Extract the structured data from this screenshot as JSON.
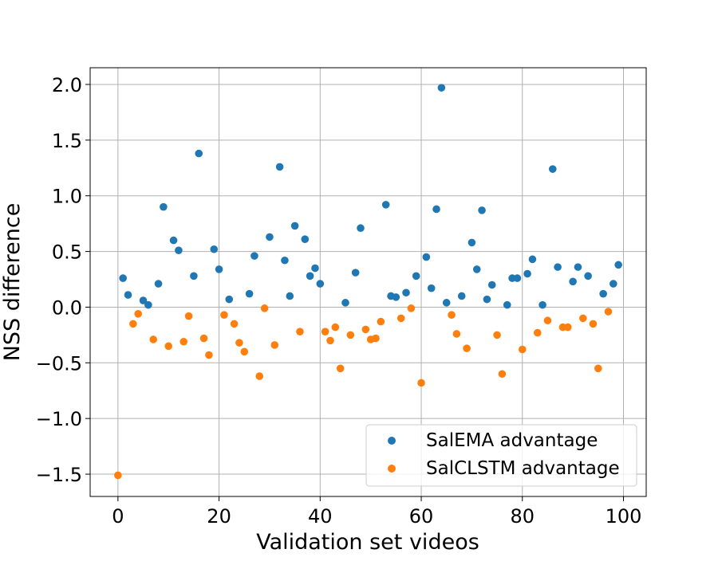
{
  "chart_data": {
    "type": "scatter",
    "title": "",
    "xlabel": "Validation set videos",
    "ylabel": "NSS difference",
    "xlim": [
      -5.5,
      104.5
    ],
    "ylim": [
      -1.7,
      2.15
    ],
    "xticks": [
      0,
      20,
      40,
      60,
      80,
      100
    ],
    "yticks": [
      -1.5,
      -1.0,
      -0.5,
      0.0,
      0.5,
      1.0,
      1.5,
      2.0
    ],
    "xtick_labels": [
      "0",
      "20",
      "40",
      "60",
      "80",
      "100"
    ],
    "ytick_labels": [
      "−1.5",
      "−1.0",
      "−0.5",
      "0.0",
      "0.5",
      "1.0",
      "1.5",
      "2.0"
    ],
    "grid": true,
    "legend_position": "lower-right",
    "series": [
      {
        "name": "SalEMA advantage",
        "color": "#1f77b4",
        "points": [
          [
            1,
            0.26
          ],
          [
            2,
            0.11
          ],
          [
            5,
            0.06
          ],
          [
            6,
            0.02
          ],
          [
            8,
            0.21
          ],
          [
            9,
            0.9
          ],
          [
            11,
            0.6
          ],
          [
            12,
            0.51
          ],
          [
            15,
            0.28
          ],
          [
            16,
            1.38
          ],
          [
            19,
            0.52
          ],
          [
            20,
            0.34
          ],
          [
            22,
            0.07
          ],
          [
            26,
            0.12
          ],
          [
            27,
            0.46
          ],
          [
            30,
            0.63
          ],
          [
            32,
            1.26
          ],
          [
            33,
            0.42
          ],
          [
            34,
            0.1
          ],
          [
            35,
            0.73
          ],
          [
            37,
            0.61
          ],
          [
            38,
            0.28
          ],
          [
            39,
            0.35
          ],
          [
            40,
            0.21
          ],
          [
            45,
            0.04
          ],
          [
            47,
            0.31
          ],
          [
            48,
            0.71
          ],
          [
            53,
            0.92
          ],
          [
            54,
            0.1
          ],
          [
            55,
            0.09
          ],
          [
            57,
            0.13
          ],
          [
            59,
            0.28
          ],
          [
            61,
            0.45
          ],
          [
            62,
            0.17
          ],
          [
            63,
            0.88
          ],
          [
            64,
            1.97
          ],
          [
            65,
            0.04
          ],
          [
            68,
            0.1
          ],
          [
            70,
            0.58
          ],
          [
            71,
            0.34
          ],
          [
            72,
            0.87
          ],
          [
            73,
            0.07
          ],
          [
            74,
            0.2
          ],
          [
            77,
            0.02
          ],
          [
            78,
            0.26
          ],
          [
            79,
            0.26
          ],
          [
            81,
            0.3
          ],
          [
            82,
            0.43
          ],
          [
            84,
            0.02
          ],
          [
            86,
            1.24
          ],
          [
            87,
            0.36
          ],
          [
            90,
            0.23
          ],
          [
            91,
            0.36
          ],
          [
            93,
            0.28
          ],
          [
            96,
            0.12
          ],
          [
            98,
            0.21
          ],
          [
            99,
            0.38
          ]
        ]
      },
      {
        "name": "SalCLSTM advantage",
        "color": "#ff7f0e",
        "points": [
          [
            0,
            -1.51
          ],
          [
            3,
            -0.15
          ],
          [
            4,
            -0.06
          ],
          [
            7,
            -0.29
          ],
          [
            10,
            -0.35
          ],
          [
            13,
            -0.31
          ],
          [
            14,
            -0.08
          ],
          [
            17,
            -0.28
          ],
          [
            18,
            -0.43
          ],
          [
            21,
            -0.07
          ],
          [
            23,
            -0.15
          ],
          [
            24,
            -0.32
          ],
          [
            25,
            -0.4
          ],
          [
            28,
            -0.62
          ],
          [
            29,
            -0.01
          ],
          [
            31,
            -0.34
          ],
          [
            36,
            -0.22
          ],
          [
            41,
            -0.22
          ],
          [
            42,
            -0.3
          ],
          [
            43,
            -0.18
          ],
          [
            44,
            -0.55
          ],
          [
            46,
            -0.25
          ],
          [
            49,
            -0.2
          ],
          [
            50,
            -0.29
          ],
          [
            51,
            -0.28
          ],
          [
            52,
            -0.13
          ],
          [
            56,
            -0.1
          ],
          [
            58,
            -0.01
          ],
          [
            60,
            -0.68
          ],
          [
            66,
            -0.07
          ],
          [
            67,
            -0.24
          ],
          [
            69,
            -0.37
          ],
          [
            75,
            -0.25
          ],
          [
            76,
            -0.6
          ],
          [
            80,
            -0.38
          ],
          [
            83,
            -0.23
          ],
          [
            85,
            -0.12
          ],
          [
            88,
            -0.18
          ],
          [
            89,
            -0.18
          ],
          [
            92,
            -0.1
          ],
          [
            94,
            -0.15
          ],
          [
            95,
            -0.55
          ],
          [
            97,
            -0.04
          ]
        ]
      }
    ]
  }
}
